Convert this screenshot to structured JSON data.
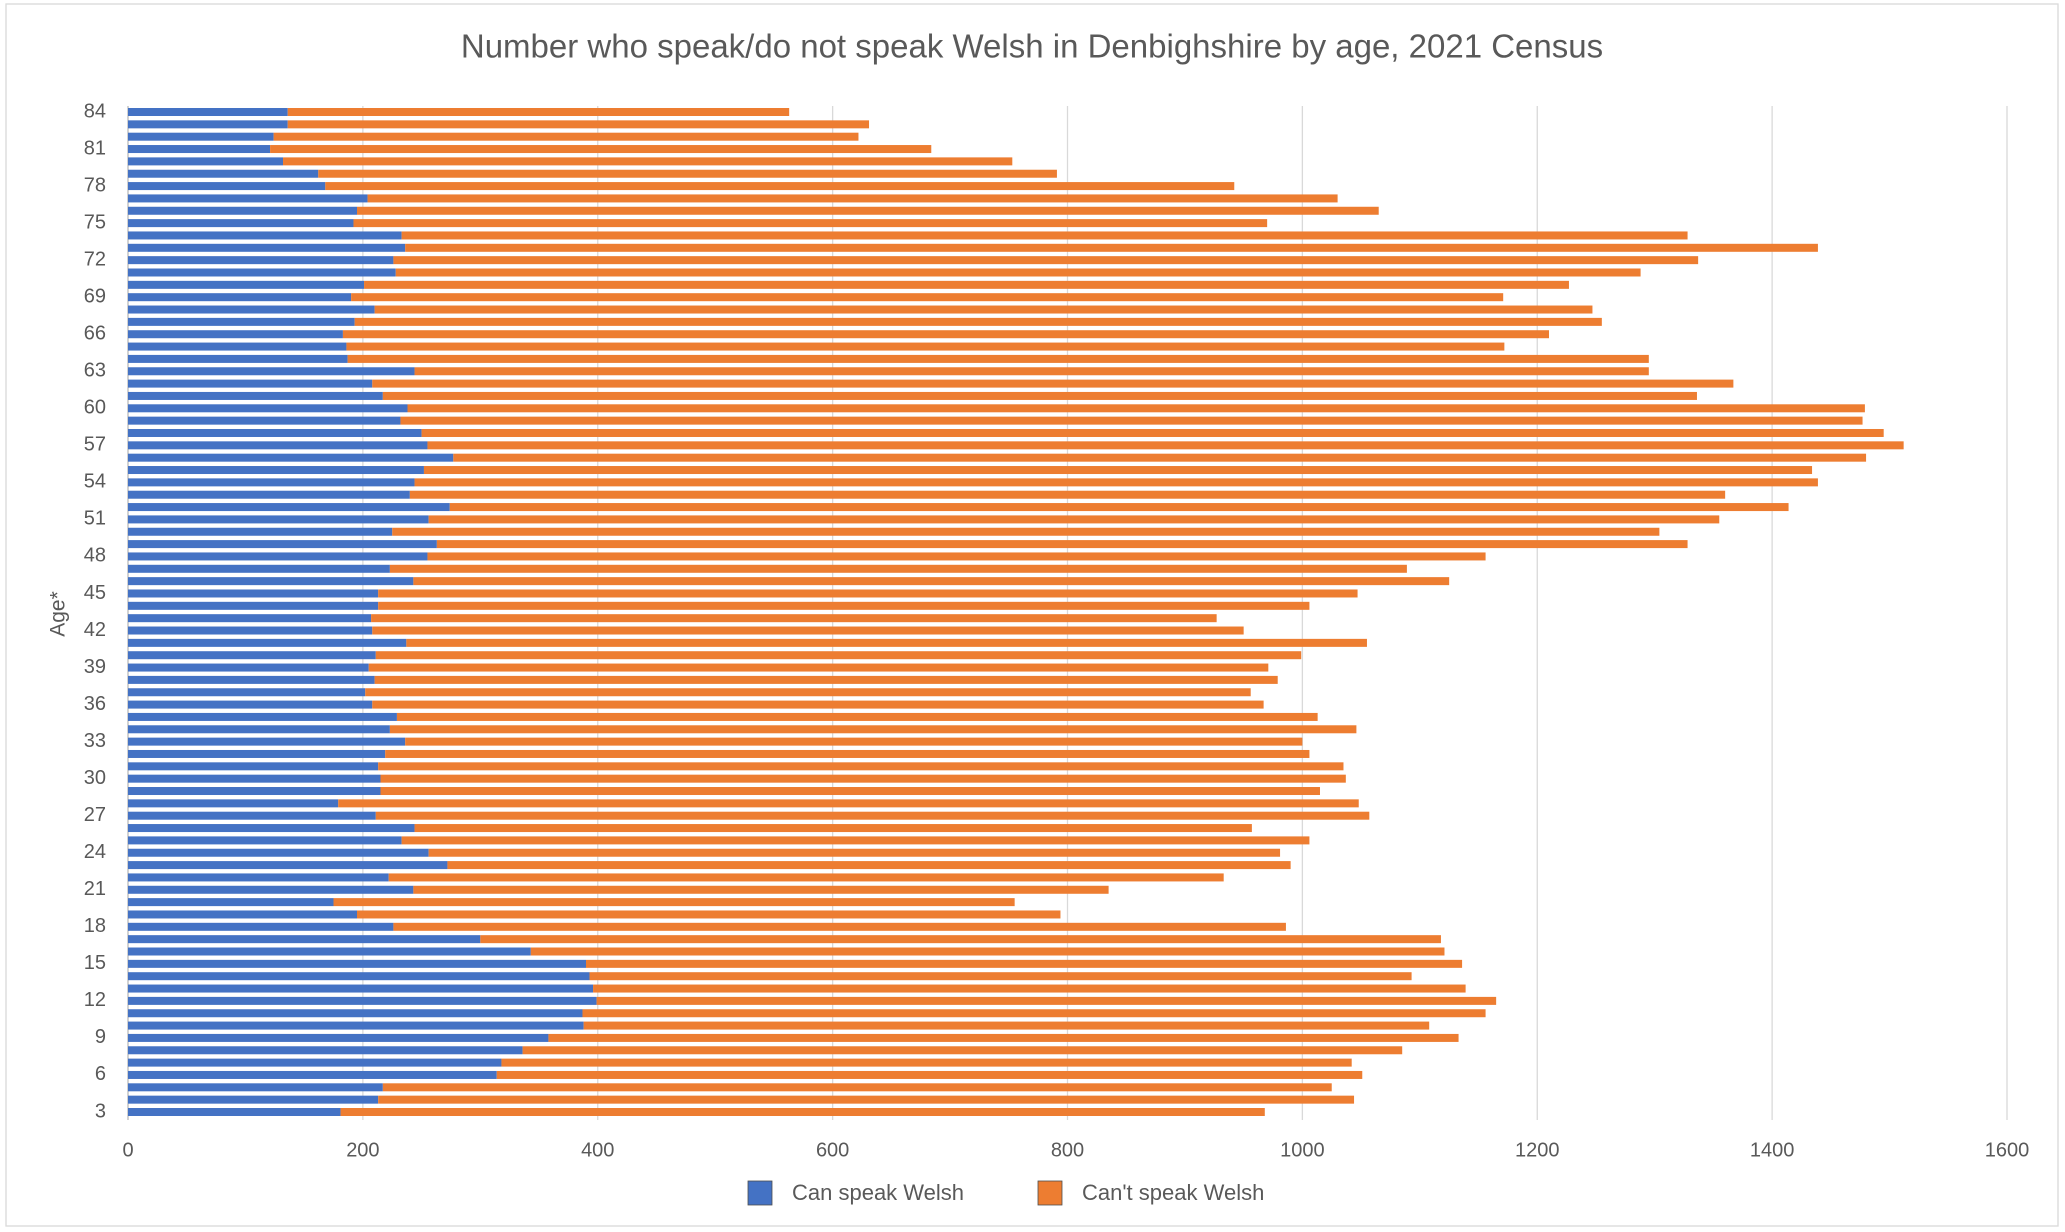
{
  "chart_data": {
    "type": "bar",
    "orientation": "horizontal",
    "stacked": true,
    "title": "Number who speak/do not speak Welsh in Denbighshire by age,  2021 Census",
    "y_label": "Age*",
    "categories": [
      3,
      null,
      null,
      6,
      null,
      null,
      9,
      null,
      null,
      12,
      null,
      null,
      15,
      null,
      null,
      18,
      null,
      null,
      21,
      null,
      null,
      24,
      null,
      null,
      27,
      null,
      null,
      30,
      null,
      null,
      33,
      null,
      null,
      36,
      null,
      null,
      39,
      null,
      null,
      42,
      null,
      null,
      45,
      null,
      null,
      48,
      null,
      null,
      51,
      null,
      null,
      54,
      null,
      null,
      57,
      null,
      null,
      60,
      null,
      null,
      63,
      null,
      null,
      66,
      null,
      null,
      69,
      null,
      null,
      72,
      null,
      null,
      75,
      null,
      null,
      78,
      null,
      null,
      81,
      null,
      null,
      84
    ],
    "series": [
      {
        "name": "Can speak Welsh",
        "color": "#4472c4",
        "values": [
          181,
          213,
          217,
          314,
          318,
          336,
          358,
          388,
          387,
          399,
          396,
          393,
          390,
          343,
          300,
          226,
          195,
          175,
          243,
          222,
          272,
          256,
          233,
          244,
          211,
          179,
          215,
          215,
          213,
          219,
          236,
          223,
          229,
          208,
          202,
          210,
          205,
          211,
          237,
          208,
          207,
          213,
          213,
          243,
          223,
          255,
          263,
          225,
          256,
          274,
          240,
          244,
          252,
          277,
          255,
          250,
          232,
          238,
          217,
          208,
          244,
          187,
          186,
          183,
          193,
          210,
          190,
          201,
          228,
          226,
          236,
          233,
          192,
          195,
          204,
          168,
          162,
          132,
          121,
          124,
          136,
          136
        ]
      },
      {
        "name": "Can't speak Welsh",
        "color": "#ed7d31",
        "values": [
          787,
          831,
          808,
          737,
          724,
          749,
          775,
          720,
          769,
          766,
          743,
          700,
          746,
          778,
          818,
          760,
          599,
          580,
          592,
          711,
          718,
          725,
          773,
          713,
          846,
          869,
          800,
          822,
          822,
          787,
          764,
          823,
          784,
          759,
          754,
          769,
          766,
          788,
          818,
          742,
          720,
          793,
          834,
          882,
          866,
          901,
          1065,
          1079,
          1099,
          1140,
          1120,
          1195,
          1182,
          1203,
          1257,
          1245,
          1245,
          1241,
          1119,
          1159,
          1051,
          1108,
          986,
          1027,
          1062,
          1037,
          981,
          1026,
          1060,
          1111,
          1203,
          1095,
          778,
          870,
          826,
          774,
          629,
          621,
          563,
          498,
          495,
          427
        ]
      }
    ],
    "xlim": [
      0,
      1600
    ],
    "xticks": [
      0,
      200,
      400,
      600,
      800,
      1000,
      1200,
      1400,
      1600
    ],
    "grid": true,
    "legend": "bottom"
  }
}
